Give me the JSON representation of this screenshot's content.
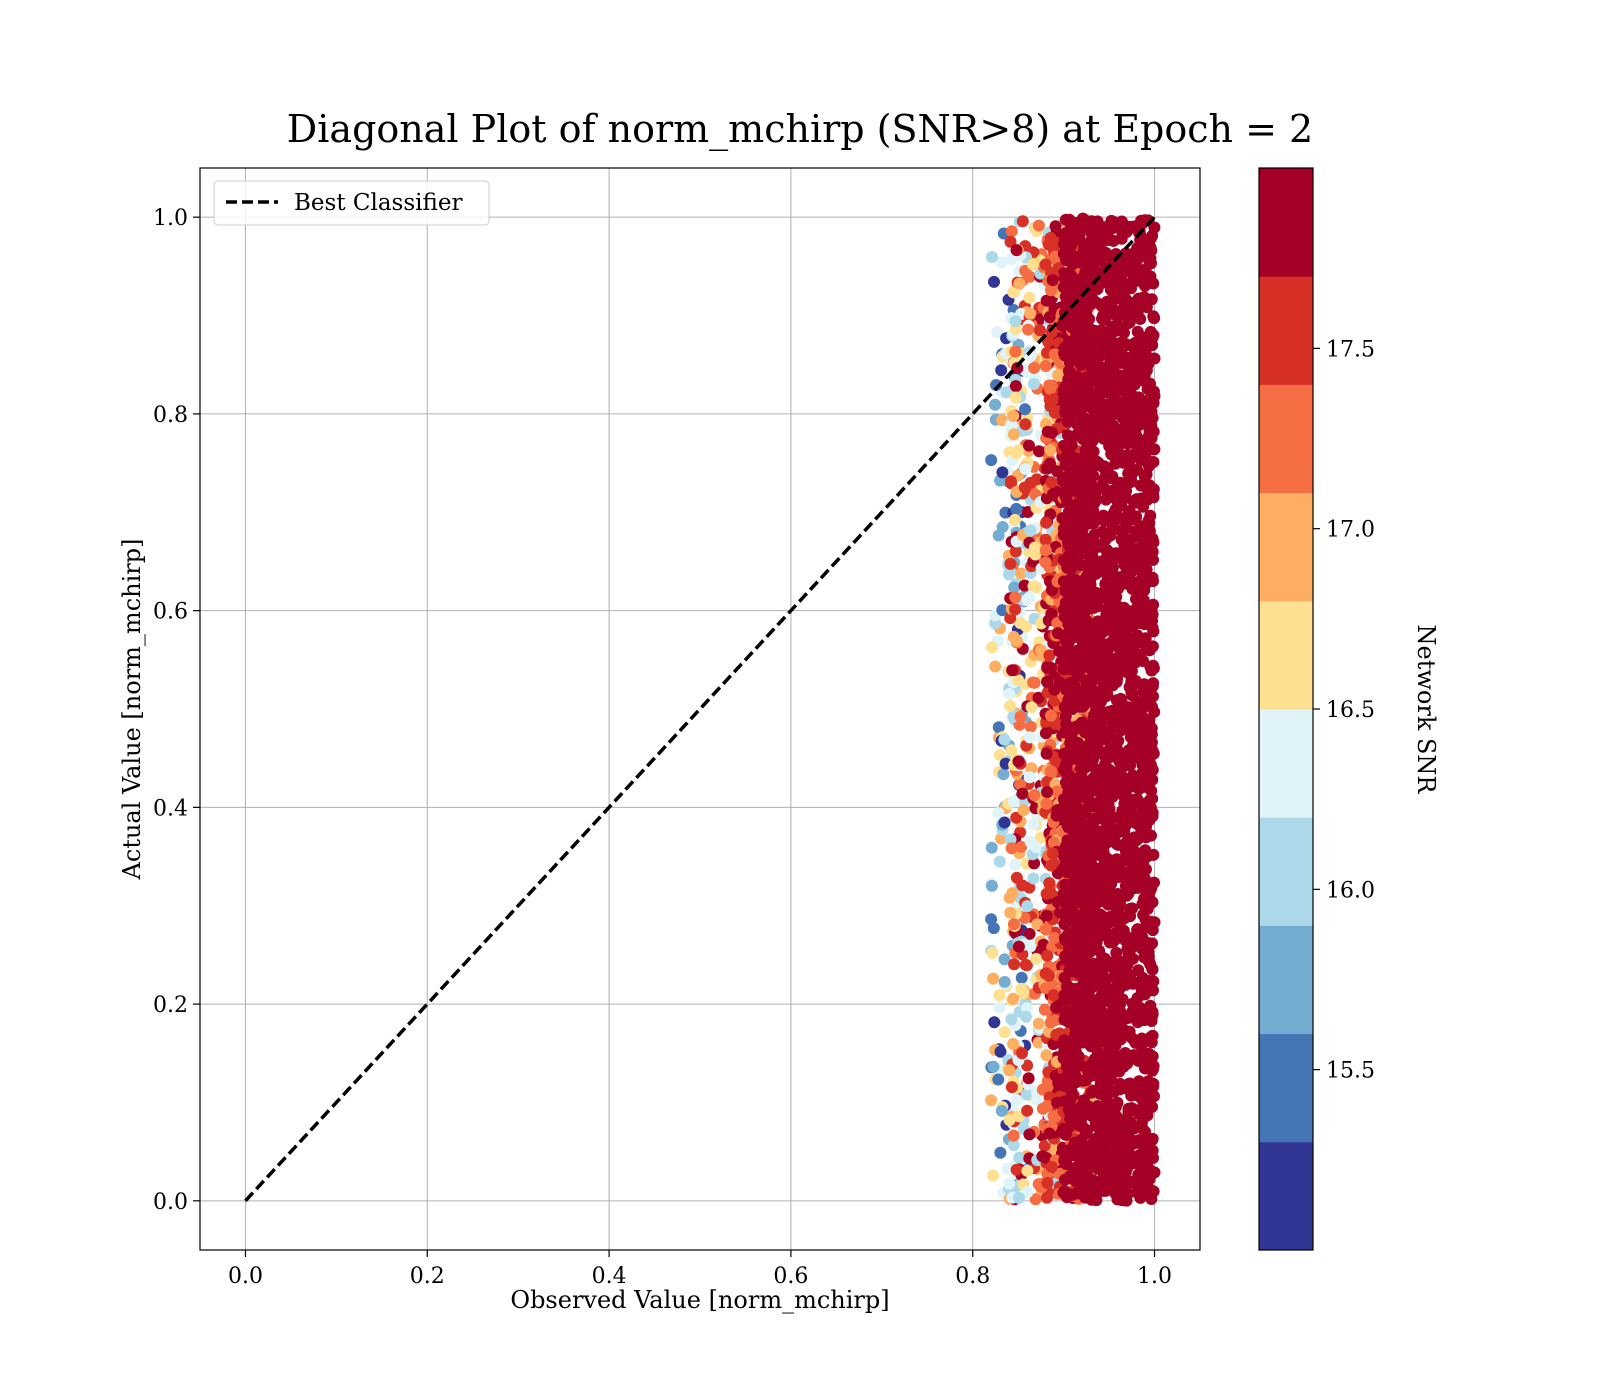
{
  "chart_data": {
    "type": "scatter",
    "title": "Diagonal Plot of norm_mchirp (SNR>8) at Epoch = 2",
    "xlabel": "Observed Value [norm_mchirp]",
    "ylabel": "Actual Value [norm_mchirp]",
    "xlim": [
      -0.05,
      1.05
    ],
    "ylim": [
      -0.05,
      1.05
    ],
    "xticks": [
      "0.0",
      "0.2",
      "0.4",
      "0.6",
      "0.8",
      "1.0"
    ],
    "yticks": [
      "0.0",
      "0.2",
      "0.4",
      "0.6",
      "0.8",
      "1.0"
    ],
    "grid": true,
    "legend": {
      "placement": "upper-left",
      "entries": [
        "Best Classifier"
      ]
    },
    "reference_line": {
      "name": "Best Classifier",
      "style": "dashed",
      "color": "#000000",
      "x": [
        0,
        1
      ],
      "y": [
        0,
        1
      ]
    },
    "point_clusters": [
      {
        "x_range": [
          0.82,
          0.86
        ],
        "y_range": [
          0.0,
          1.0
        ],
        "snr_range": [
          15.0,
          17.0
        ],
        "count": 180
      },
      {
        "x_range": [
          0.84,
          0.9
        ],
        "y_range": [
          0.0,
          1.0
        ],
        "snr_range": [
          16.0,
          17.9
        ],
        "count": 600
      },
      {
        "x_range": [
          0.88,
          0.93
        ],
        "y_range": [
          0.0,
          1.0
        ],
        "snr_range": [
          17.0,
          18.0
        ],
        "count": 900
      },
      {
        "x_range": [
          0.9,
          1.0
        ],
        "y_range": [
          0.0,
          1.0
        ],
        "snr_range": [
          17.8,
          18.0
        ],
        "count": 2600
      }
    ],
    "colorbar": {
      "label": "Network SNR",
      "range": [
        15.0,
        18.0
      ],
      "ticks": [
        "15.5",
        "16.0",
        "16.5",
        "17.0",
        "17.5"
      ],
      "bins": [
        {
          "from": 15.0,
          "to": 15.3,
          "color": "#313695"
        },
        {
          "from": 15.3,
          "to": 15.6,
          "color": "#4575b4"
        },
        {
          "from": 15.6,
          "to": 15.9,
          "color": "#74add1"
        },
        {
          "from": 15.9,
          "to": 16.2,
          "color": "#abd9e9"
        },
        {
          "from": 16.2,
          "to": 16.5,
          "color": "#e0f3f8"
        },
        {
          "from": 16.5,
          "to": 16.8,
          "color": "#fee090"
        },
        {
          "from": 16.8,
          "to": 17.1,
          "color": "#fdae61"
        },
        {
          "from": 17.1,
          "to": 17.4,
          "color": "#f46d43"
        },
        {
          "from": 17.4,
          "to": 17.7,
          "color": "#d73027"
        },
        {
          "from": 17.7,
          "to": 18.0,
          "color": "#a50026"
        }
      ]
    }
  }
}
